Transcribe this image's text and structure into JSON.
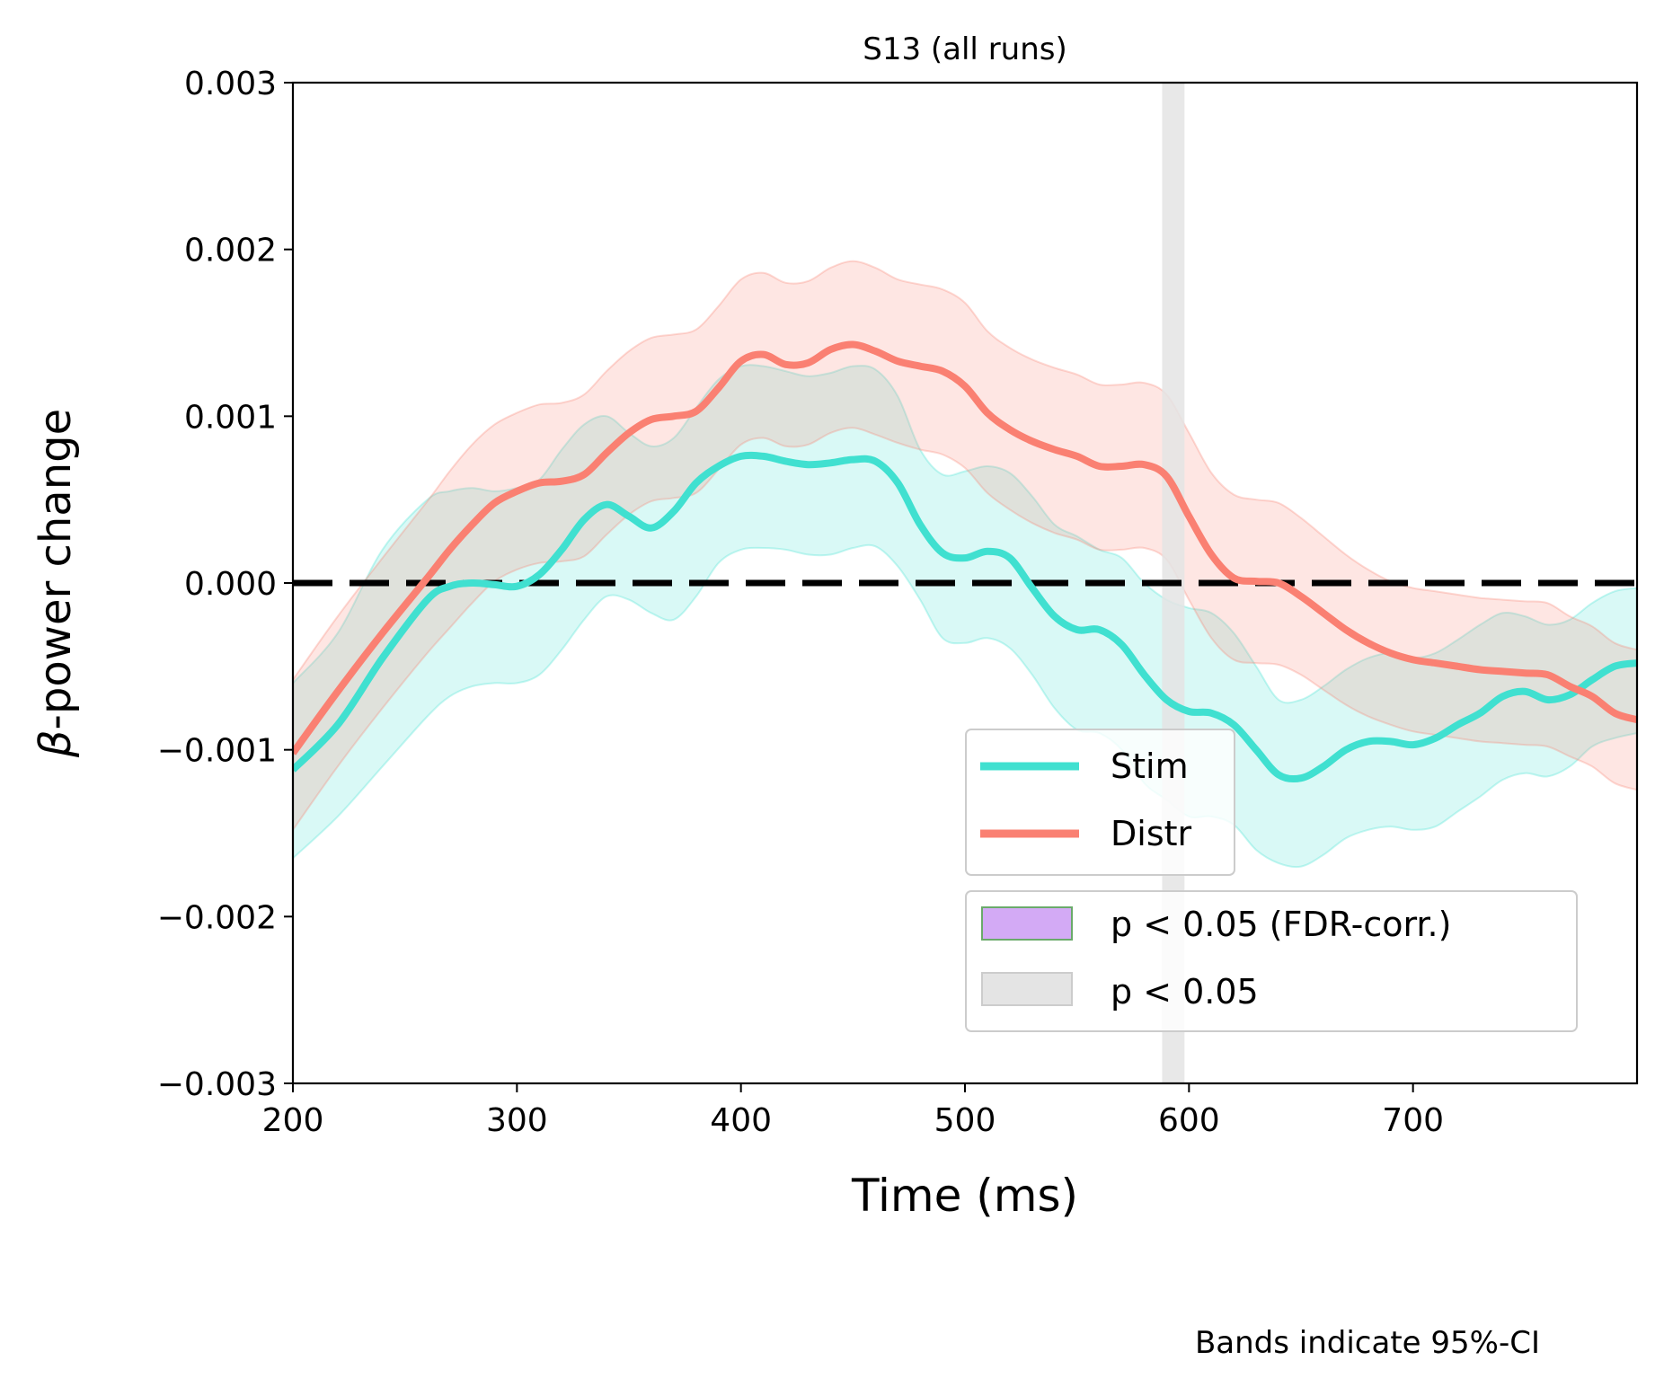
{
  "chart_data": {
    "type": "line",
    "title": "S13 (all runs)",
    "xlabel": "Time (ms)",
    "ylabel_symbol": "β",
    "ylabel_rest": "-power change",
    "xlim": [
      200,
      800
    ],
    "ylim": [
      -0.003,
      0.003
    ],
    "xticks": [
      200,
      300,
      400,
      500,
      600,
      700
    ],
    "xtick_labels": [
      "200",
      "300",
      "400",
      "500",
      "600",
      "700"
    ],
    "yticks": [
      0.003,
      0.002,
      0.001,
      0.0,
      -0.001,
      -0.002,
      -0.003
    ],
    "ytick_labels": [
      "0.003",
      "0.002",
      "0.001",
      "0.000",
      "−0.001",
      "−0.002",
      "−0.003"
    ],
    "grid": false,
    "reference_line": {
      "y": 0,
      "style": "dashed",
      "color": "#000000"
    },
    "significance_band": {
      "x_start": 588,
      "x_end": 598,
      "label": "p < 0.05",
      "color": "#e4e4e4"
    },
    "legend": {
      "placement": "lower-right",
      "lines": [
        {
          "name": "Stim",
          "color": "#40e0d0"
        },
        {
          "name": "Distr",
          "color": "#fa8072"
        }
      ],
      "patches": [
        {
          "name": "p < 0.05 (FDR-corr.)",
          "color": "#d3aaf5",
          "edge": "#6aaa6a"
        },
        {
          "name": "p < 0.05",
          "color": "#e4e4e4",
          "edge": "#cccccc"
        }
      ]
    },
    "note": "Bands indicate 95%-CI",
    "series": [
      {
        "name": "Stim",
        "color": "#40e0d0",
        "x": [
          200,
          220,
          240,
          260,
          270,
          280,
          290,
          300,
          310,
          320,
          330,
          340,
          350,
          360,
          370,
          380,
          390,
          400,
          410,
          420,
          430,
          440,
          450,
          460,
          470,
          480,
          490,
          500,
          510,
          520,
          530,
          540,
          550,
          560,
          570,
          580,
          590,
          600,
          610,
          620,
          630,
          640,
          650,
          660,
          670,
          680,
          690,
          700,
          710,
          720,
          730,
          740,
          750,
          760,
          770,
          780,
          790,
          800
        ],
        "y": [
          -0.00112,
          -0.00085,
          -0.00045,
          -0.0001,
          -2e-05,
          0,
          -1e-05,
          -2e-05,
          5e-05,
          0.0002,
          0.00038,
          0.00047,
          0.0004,
          0.00033,
          0.00043,
          0.0006,
          0.0007,
          0.00076,
          0.00076,
          0.00073,
          0.00071,
          0.00072,
          0.00074,
          0.00073,
          0.0006,
          0.00035,
          0.00018,
          0.00015,
          0.00019,
          0.00015,
          -3e-05,
          -0.0002,
          -0.00028,
          -0.00028,
          -0.00037,
          -0.00055,
          -0.0007,
          -0.00077,
          -0.00078,
          -0.00085,
          -0.001,
          -0.00115,
          -0.00117,
          -0.0011,
          -0.001,
          -0.00095,
          -0.00095,
          -0.00097,
          -0.00093,
          -0.00085,
          -0.00078,
          -0.00068,
          -0.00065,
          -0.0007,
          -0.00067,
          -0.00058,
          -0.0005,
          -0.00048
        ],
        "ci_lower": [
          -0.00165,
          -0.0014,
          -0.0011,
          -0.0008,
          -0.00068,
          -0.00062,
          -0.0006,
          -0.0006,
          -0.00055,
          -0.0004,
          -0.00022,
          -8e-05,
          -0.0001,
          -0.00018,
          -0.00022,
          -8e-05,
          0.00012,
          0.0002,
          0.00021,
          0.0002,
          0.00017,
          0.00017,
          0.00021,
          0.00022,
          0.0001,
          -0.0001,
          -0.00033,
          -0.00036,
          -0.00033,
          -0.00039,
          -0.00055,
          -0.00075,
          -0.00088,
          -0.0009,
          -0.001,
          -0.0012,
          -0.0013,
          -0.0014,
          -0.0014,
          -0.00145,
          -0.0016,
          -0.00168,
          -0.0017,
          -0.00163,
          -0.00153,
          -0.00148,
          -0.00146,
          -0.00148,
          -0.00146,
          -0.00137,
          -0.00128,
          -0.00118,
          -0.00114,
          -0.00116,
          -0.0011,
          -0.00098,
          -0.00093,
          -0.0009
        ],
        "ci_upper": [
          -0.0006,
          -0.0003,
          0.0002,
          0.0005,
          0.00055,
          0.00057,
          0.00055,
          0.00057,
          0.00062,
          0.0008,
          0.00095,
          0.001,
          0.0009,
          0.00082,
          0.00087,
          0.00105,
          0.00122,
          0.0013,
          0.0013,
          0.00127,
          0.00124,
          0.00126,
          0.0013,
          0.00128,
          0.00112,
          0.0008,
          0.00065,
          0.00067,
          0.0007,
          0.00066,
          0.00052,
          0.00035,
          0.00028,
          0.0002,
          0.00015,
          0.0,
          -0.0001,
          -0.00015,
          -0.00018,
          -0.0003,
          -0.0005,
          -0.0007,
          -0.0007,
          -0.00062,
          -0.00052,
          -0.00045,
          -0.00042,
          -0.00045,
          -0.00042,
          -0.00034,
          -0.00025,
          -0.00018,
          -0.0002,
          -0.00025,
          -0.00022,
          -0.00012,
          -5e-05,
          -3e-05
        ]
      },
      {
        "name": "Distr",
        "color": "#fa8072",
        "x": [
          200,
          220,
          240,
          260,
          270,
          280,
          290,
          300,
          310,
          320,
          330,
          340,
          350,
          360,
          370,
          380,
          390,
          400,
          410,
          420,
          430,
          440,
          450,
          460,
          470,
          480,
          490,
          500,
          510,
          520,
          530,
          540,
          550,
          560,
          570,
          580,
          590,
          600,
          610,
          620,
          630,
          640,
          650,
          660,
          670,
          680,
          690,
          700,
          710,
          720,
          730,
          740,
          750,
          760,
          770,
          780,
          790,
          800
        ],
        "y": [
          -0.00102,
          -0.00065,
          -0.0003,
          3e-05,
          0.0002,
          0.00035,
          0.00048,
          0.00055,
          0.0006,
          0.00061,
          0.00065,
          0.00078,
          0.0009,
          0.00098,
          0.001,
          0.00103,
          0.00117,
          0.00133,
          0.00137,
          0.00131,
          0.00132,
          0.0014,
          0.00143,
          0.00139,
          0.00133,
          0.0013,
          0.00127,
          0.00118,
          0.00102,
          0.00092,
          0.00085,
          0.0008,
          0.00076,
          0.0007,
          0.0007,
          0.00071,
          0.00064,
          0.0004,
          0.00017,
          3e-05,
          1e-05,
          0,
          -8e-05,
          -0.00018,
          -0.00028,
          -0.00036,
          -0.00042,
          -0.00046,
          -0.00048,
          -0.0005,
          -0.00052,
          -0.00053,
          -0.00054,
          -0.00055,
          -0.00062,
          -0.00068,
          -0.00078,
          -0.00082
        ],
        "ci_lower": [
          -0.00148,
          -0.0011,
          -0.00075,
          -0.00042,
          -0.00027,
          -0.00012,
          1e-05,
          8e-05,
          0.00012,
          0.00013,
          0.00016,
          0.00029,
          0.00041,
          0.00049,
          0.00051,
          0.00054,
          0.00068,
          0.00083,
          0.00087,
          0.00082,
          0.00083,
          0.0009,
          0.00093,
          0.00089,
          0.00084,
          0.0008,
          0.00077,
          0.00069,
          0.00054,
          0.00044,
          0.00036,
          0.0003,
          0.00026,
          0.0002,
          0.0002,
          0.00021,
          0.00014,
          -0.0001,
          -0.00033,
          -0.00046,
          -0.00048,
          -0.00049,
          -0.00055,
          -0.00064,
          -0.00073,
          -0.0008,
          -0.00085,
          -0.00089,
          -0.00091,
          -0.00093,
          -0.00095,
          -0.00096,
          -0.00097,
          -0.00098,
          -0.00104,
          -0.0011,
          -0.0012,
          -0.00124
        ],
        "ci_upper": [
          -0.00058,
          -0.0002,
          0.00015,
          0.00049,
          0.00067,
          0.00083,
          0.00095,
          0.00102,
          0.00107,
          0.00108,
          0.00113,
          0.00127,
          0.00139,
          0.00147,
          0.00149,
          0.00152,
          0.00166,
          0.00182,
          0.00186,
          0.0018,
          0.00181,
          0.00189,
          0.00193,
          0.00189,
          0.00182,
          0.00179,
          0.00176,
          0.00168,
          0.00151,
          0.00141,
          0.00134,
          0.00129,
          0.00125,
          0.00119,
          0.00119,
          0.0012,
          0.00113,
          0.0009,
          0.00066,
          0.00053,
          0.0005,
          0.00048,
          0.00039,
          0.00028,
          0.00017,
          8e-05,
          1e-05,
          -3e-05,
          -5e-05,
          -7e-05,
          -9e-05,
          -0.0001,
          -0.00011,
          -0.00012,
          -0.0002,
          -0.00026,
          -0.00036,
          -0.0004
        ]
      }
    ]
  }
}
